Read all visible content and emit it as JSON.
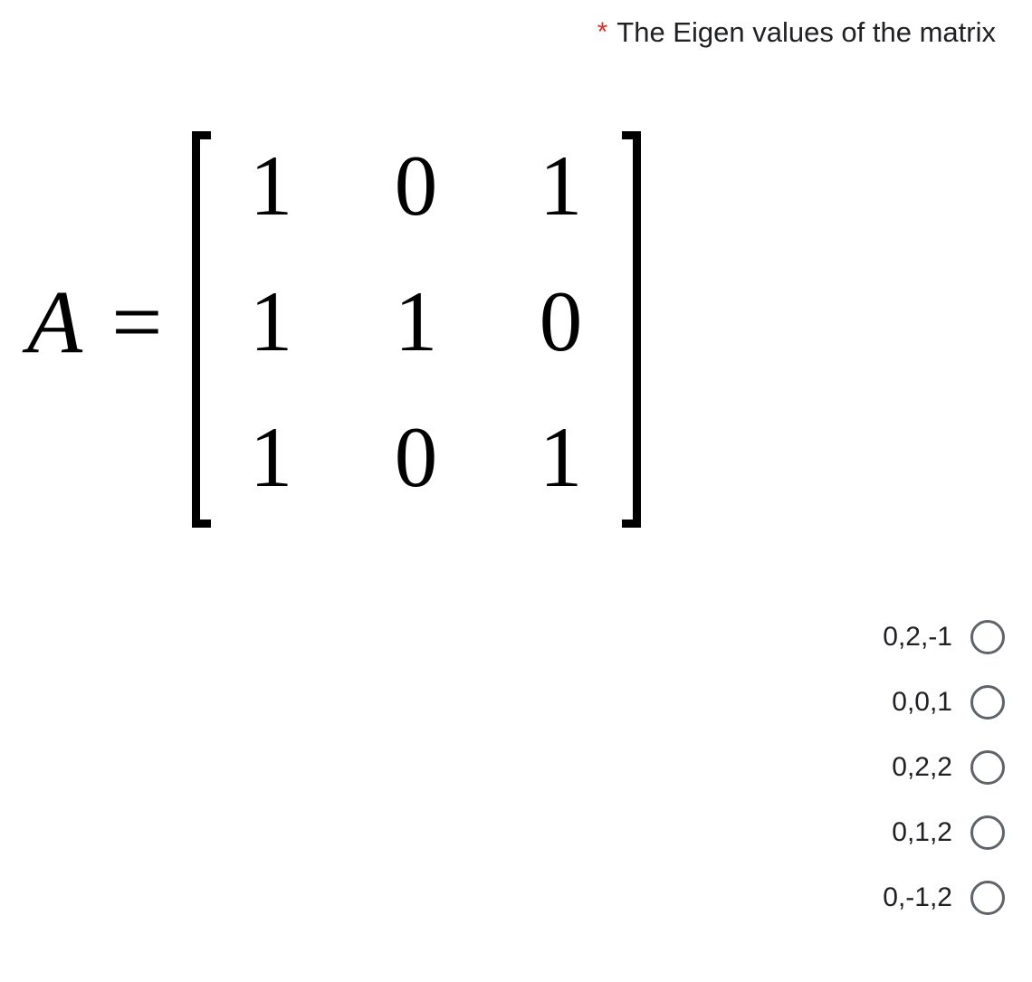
{
  "question": {
    "required_marker": "*",
    "text": "The Eigen values of the matrix"
  },
  "matrix": {
    "label": "A",
    "equals": "=",
    "rows": [
      [
        "1",
        "0",
        "1"
      ],
      [
        "1",
        "1",
        "0"
      ],
      [
        "1",
        "0",
        "1"
      ]
    ],
    "font_family": "Times New Roman",
    "cell_fontsize": 95,
    "label_fontsize": 100,
    "bracket_color": "#000000",
    "bracket_thickness": 9
  },
  "options": [
    {
      "label": "0,2,-1",
      "selected": false
    },
    {
      "label": "0,0,1",
      "selected": false
    },
    {
      "label": "0,2,2",
      "selected": false
    },
    {
      "label": "0,1,2",
      "selected": false
    },
    {
      "label": "0,-1,2",
      "selected": false
    }
  ],
  "colors": {
    "text": "#202124",
    "asterisk": "#d93025",
    "radio_border": "#5f6368",
    "background": "#ffffff"
  },
  "typography": {
    "question_fontsize": 31,
    "option_fontsize": 30
  }
}
